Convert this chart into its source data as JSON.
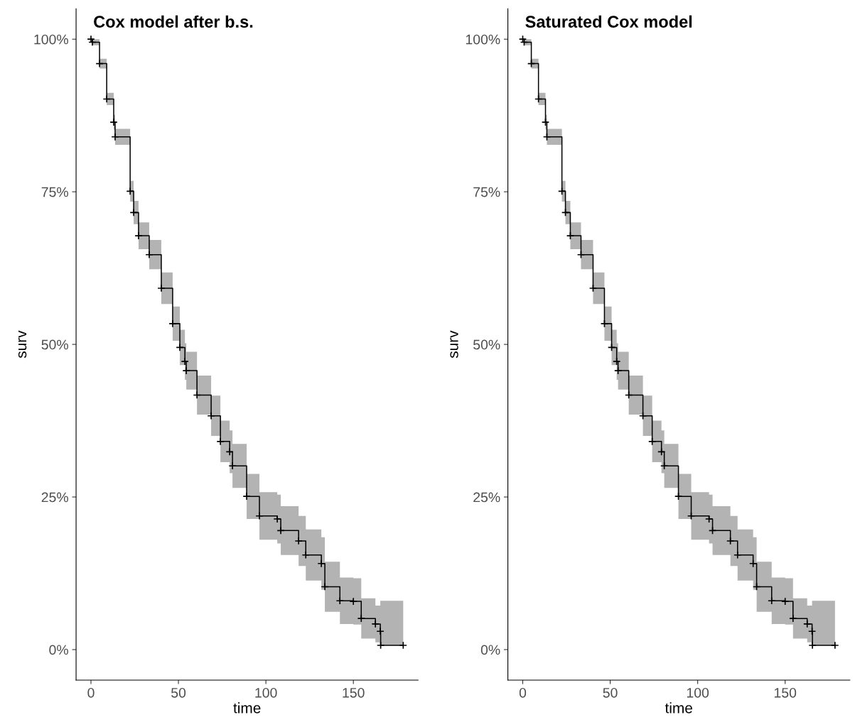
{
  "chart_data": [
    {
      "type": "step",
      "title": "Cox model after b.s.",
      "xlabel": "time",
      "ylabel": "surv",
      "xlim": [
        -8.5,
        187
      ],
      "xticks": [
        0,
        50,
        100,
        150
      ],
      "ylim": [
        -5,
        105
      ],
      "yticks": [
        {
          "value": 0,
          "label": "0%"
        },
        {
          "value": 25,
          "label": "25%"
        },
        {
          "value": 50,
          "label": "50%"
        },
        {
          "value": 75,
          "label": "75%"
        },
        {
          "value": 100,
          "label": "100%"
        }
      ],
      "grid": false,
      "legend": false,
      "marker": "cross",
      "line_style": "solid",
      "series": [
        {
          "color": "#000000",
          "x": [
            0,
            0.8,
            4.9,
            9,
            13,
            13.8,
            22.4,
            24.4,
            27.2,
            33.3,
            40.2,
            46.7,
            50.8,
            53.7,
            54.5,
            60.6,
            68.7,
            74,
            79.3,
            80.9,
            89,
            96.3,
            106.5,
            108.5,
            118.7,
            122.8,
            131.7,
            133.7,
            142.3,
            150,
            154.5,
            162.6,
            165.4,
            165.6,
            178.5
          ],
          "values": [
            100,
            99.5,
            96,
            90.2,
            86.4,
            84,
            75.1,
            71.6,
            67.8,
            64.7,
            59.2,
            53.4,
            49.5,
            47.2,
            45.7,
            41.7,
            38.3,
            34.1,
            32.4,
            30.1,
            25.1,
            21.9,
            21.4,
            19.5,
            17.8,
            15.5,
            14.1,
            10.3,
            8,
            7.9,
            5.1,
            4.2,
            3,
            0.7,
            0.7
          ],
          "lower": [
            100,
            99,
            95.2,
            89.2,
            85.2,
            82.7,
            73.4,
            69.7,
            65.6,
            62.3,
            56.6,
            50.6,
            46.6,
            44.2,
            42.6,
            38.5,
            35,
            30.7,
            28.9,
            26.5,
            21.4,
            18,
            17.4,
            15.5,
            13.7,
            11.3,
            9.8,
            6.2,
            4.2,
            4.1,
            1.8,
            1.2,
            0.7,
            0.7,
            0.7
          ],
          "upper": [
            100,
            100,
            96.8,
            91.2,
            87.6,
            85.3,
            76.8,
            73.5,
            70,
            67.1,
            61.8,
            56.2,
            52.4,
            50.2,
            48.8,
            44.9,
            41.6,
            37.5,
            35.9,
            33.7,
            28.8,
            25.8,
            25.4,
            23.5,
            21.9,
            19.7,
            18.4,
            14.4,
            11.8,
            11.7,
            8.4,
            7.2,
            8,
            8,
            8
          ]
        }
      ]
    },
    {
      "type": "step",
      "title": "Saturated Cox model",
      "xlabel": "time",
      "ylabel": "surv",
      "xlim": [
        -8.5,
        187
      ],
      "xticks": [
        0,
        50,
        100,
        150
      ],
      "ylim": [
        -5,
        105
      ],
      "yticks": [
        {
          "value": 0,
          "label": "0%"
        },
        {
          "value": 25,
          "label": "25%"
        },
        {
          "value": 50,
          "label": "50%"
        },
        {
          "value": 75,
          "label": "75%"
        },
        {
          "value": 100,
          "label": "100%"
        }
      ],
      "grid": false,
      "legend": false,
      "marker": "cross",
      "line_style": "solid",
      "series": [
        {
          "color": "#000000",
          "x": [
            0,
            0.8,
            4.9,
            9,
            13,
            13.8,
            22.4,
            24.4,
            27.2,
            33.3,
            40.2,
            46.7,
            50.8,
            53.7,
            54.5,
            60.6,
            68.7,
            74,
            79.3,
            80.9,
            89,
            96.3,
            106.5,
            108.5,
            118.7,
            122.8,
            131.7,
            133.7,
            142.3,
            150,
            154.5,
            162.6,
            165.4,
            165.6,
            178.5
          ],
          "values": [
            100,
            99.5,
            96,
            90.2,
            86.4,
            84,
            75.1,
            71.6,
            67.8,
            64.7,
            59.2,
            53.4,
            49.5,
            47.2,
            45.7,
            41.7,
            38.3,
            34.1,
            32.4,
            30.1,
            25.1,
            21.9,
            21.4,
            19.5,
            17.8,
            15.5,
            14.1,
            10.3,
            8,
            7.9,
            5.1,
            4.2,
            3,
            0.7,
            0.7
          ],
          "lower": [
            100,
            99,
            95.2,
            89.2,
            85.2,
            82.7,
            73.4,
            69.7,
            65.6,
            62.3,
            56.6,
            50.6,
            46.6,
            44.2,
            42.6,
            38.5,
            35,
            30.7,
            28.9,
            26.5,
            21.4,
            18,
            17.4,
            15.5,
            13.7,
            11.3,
            9.8,
            6.2,
            4.2,
            4.1,
            1.8,
            1.2,
            0.7,
            0.7,
            0.7
          ],
          "upper": [
            100,
            100,
            96.8,
            91.2,
            87.6,
            85.3,
            76.8,
            73.5,
            70,
            67.1,
            61.8,
            56.2,
            52.4,
            50.2,
            48.8,
            44.9,
            41.6,
            37.5,
            35.9,
            33.7,
            28.8,
            25.8,
            25.4,
            23.5,
            21.9,
            19.7,
            18.4,
            14.4,
            11.8,
            11.7,
            8.4,
            7.2,
            8,
            8,
            8
          ]
        }
      ]
    }
  ]
}
